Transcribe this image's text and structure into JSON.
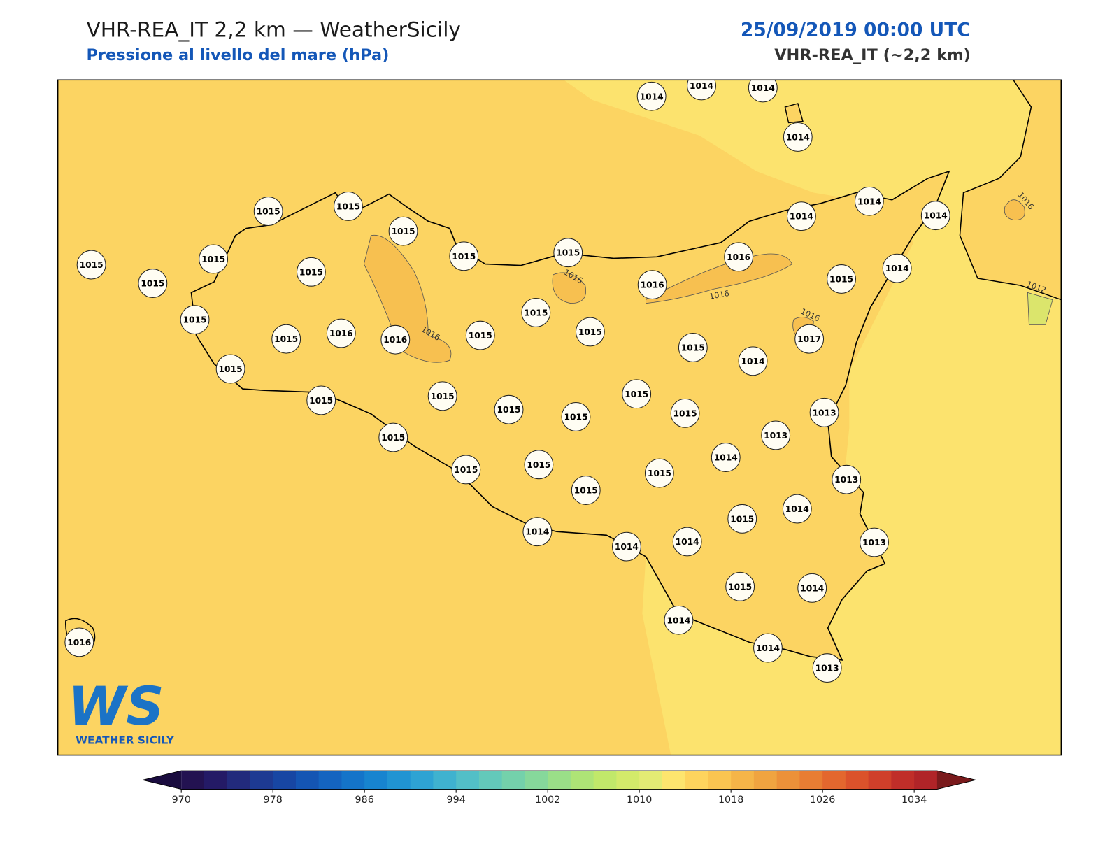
{
  "header": {
    "title": "VHR-REA_IT 2,2 km — WeatherSicily",
    "subtitle": "Pressione al livello del mare (hPa)",
    "date": "25/09/2019 00:00 UTC",
    "model": "VHR-REA_IT (~2,2 km)"
  },
  "map": {
    "stations": [
      1014,
      1014,
      1014,
      1014,
      1015,
      1015,
      1015,
      1015,
      1015,
      1015,
      1015,
      1015,
      1015,
      1016,
      1014,
      1014,
      1014,
      1015,
      1014,
      1016,
      1015,
      1015,
      1016,
      1016,
      1015,
      1015,
      1015,
      1015,
      1014,
      1017,
      1015,
      1015,
      1015,
      1015,
      1015,
      1015,
      1015,
      1013,
      1013,
      1015,
      1014,
      1015,
      1015,
      1015,
      1015,
      1013,
      1014,
      1015,
      1014,
      1014,
      1014,
      1013,
      1015,
      1014,
      1014,
      1014,
      1013,
      1016
    ],
    "contour_labels": [
      1016,
      1016,
      1016,
      1016,
      1016,
      1012
    ],
    "logo": {
      "mark": "WS",
      "name": "WEATHER SICILY"
    }
  },
  "colorbar": {
    "ticks": [
      970,
      978,
      986,
      994,
      1002,
      1010,
      1018,
      1026,
      1034
    ],
    "colors": [
      "#231251",
      "#241a66",
      "#222a7c",
      "#1d3a92",
      "#1746a3",
      "#1455b3",
      "#1464c0",
      "#1474c9",
      "#1784cf",
      "#2094d2",
      "#2ea3d3",
      "#3fb2cf",
      "#52bfc7",
      "#63c9ba",
      "#74d1ab",
      "#86d89b",
      "#9adf88",
      "#aee476",
      "#c1e86a",
      "#d3ea6a",
      "#e3eb74",
      "#fde56e",
      "#fed45d",
      "#fac551",
      "#f5b548",
      "#f0a440",
      "#ec9139",
      "#e87d33",
      "#e3672e",
      "#db522b",
      "#cf3f2a",
      "#c02e29",
      "#b02428"
    ]
  }
}
